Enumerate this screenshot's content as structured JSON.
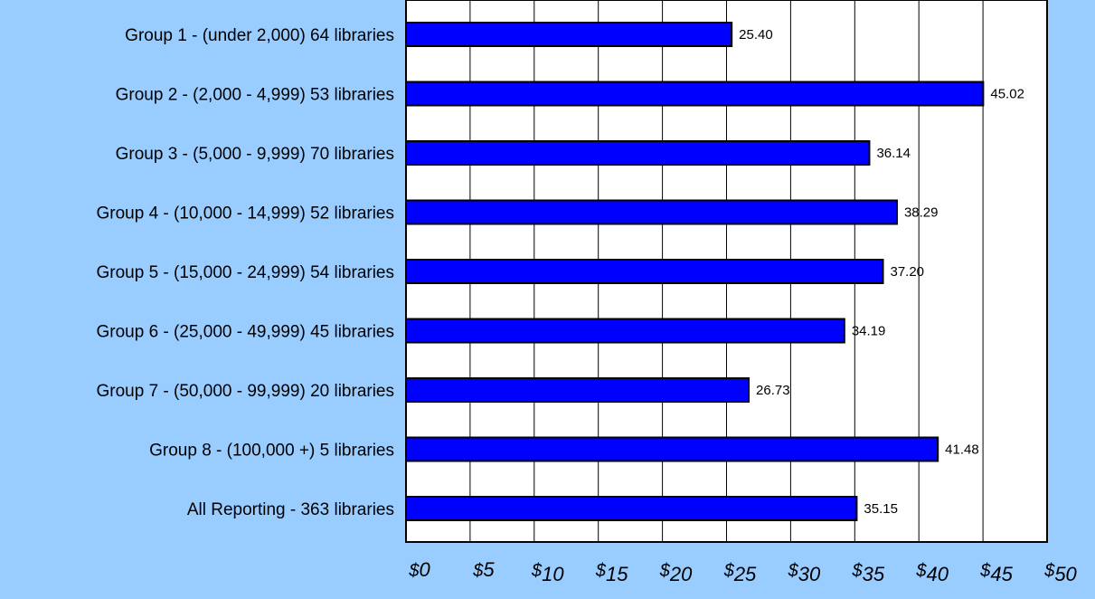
{
  "chart_data": {
    "type": "bar",
    "orientation": "horizontal",
    "title": "",
    "xlabel": "",
    "ylabel": "",
    "categories": [
      "Group 1 - (under 2,000) 64 libraries",
      "Group 2 - (2,000 - 4,999) 53 libraries",
      "Group 3 - (5,000 - 9,999) 70 libraries",
      "Group 4 - (10,000 - 14,999) 52 libraries",
      "Group 5 - (15,000 - 24,999) 54 libraries",
      "Group 6 - (25,000 - 49,999) 45 libraries",
      "Group 7 - (50,000 - 99,999) 20 libraries",
      "Group 8 - (100,000 +) 5 libraries",
      "All Reporting - 363 libraries"
    ],
    "values": [
      25.4,
      45.02,
      36.14,
      38.29,
      37.2,
      34.19,
      26.73,
      41.48,
      35.15
    ],
    "data_labels": [
      "25.40",
      "45.02",
      "36.14",
      "38.29",
      "37.20",
      "34.19",
      "26.73",
      "41.48",
      "35.15"
    ],
    "xlim": [
      0,
      50
    ],
    "x_ticks": [
      0,
      5,
      10,
      15,
      20,
      25,
      30,
      35,
      40,
      45,
      50
    ],
    "x_tick_labels": [
      "$0",
      "$5",
      "$10",
      "$15",
      "$20",
      "$25",
      "$30",
      "$35",
      "$40",
      "$45",
      "$50"
    ],
    "grid": true,
    "colors": {
      "background": "#99ccff",
      "plot_area": "#ffffff",
      "bar_fill": "#0000ff",
      "bar_stroke": "#000000",
      "grid": "#000000",
      "text": "#000000"
    }
  }
}
